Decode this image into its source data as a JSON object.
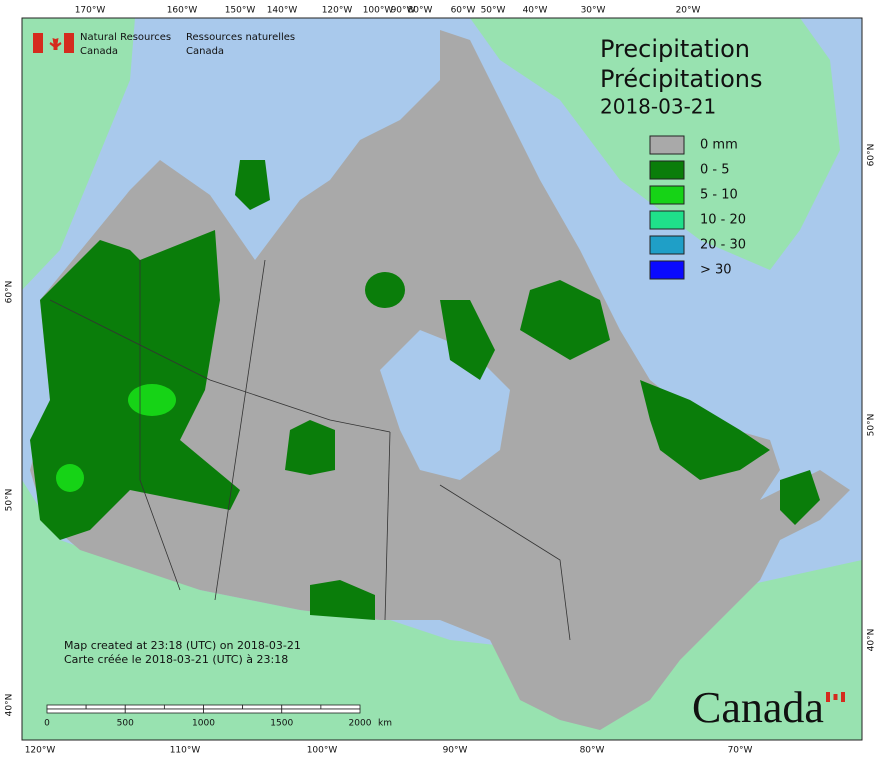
{
  "header": {
    "department_en": [
      "Natural Resources",
      "Canada"
    ],
    "department_fr": [
      "Ressources naturelles",
      "Canada"
    ]
  },
  "title": {
    "en": "Precipitation",
    "fr": "Précipitations",
    "date": "2018-03-21"
  },
  "legend": [
    {
      "label": "0 mm",
      "color": "#a9a9a9"
    },
    {
      "label": "0 - 5",
      "color": "#0a7d0a"
    },
    {
      "label": "5 - 10",
      "color": "#16d316"
    },
    {
      "label": "10 - 20",
      "color": "#1fe08a"
    },
    {
      "label": "20 - 30",
      "color": "#1f9fc7"
    },
    {
      "label": "> 30",
      "color": "#0a0aff"
    }
  ],
  "graticule": {
    "top": [
      "170°W",
      "160°W",
      "150°W",
      "140°W",
      "120°W",
      "100°W",
      "90°W",
      "80°W",
      "60°W",
      "50°W",
      "40°W",
      "30°W",
      "20°W"
    ],
    "bottom": [
      "120°W",
      "110°W",
      "100°W",
      "90°W",
      "80°W",
      "70°W"
    ],
    "left": [
      "60°N",
      "50°N",
      "40°N"
    ],
    "right": [
      "60°N",
      "50°N",
      "40°N"
    ]
  },
  "notes": [
    "Map created at 23:18 (UTC) on 2018-03-21",
    "Carte créée le 2018-03-21 (UTC) à 23:18"
  ],
  "scale_bar": {
    "ticks": [
      0,
      500,
      1000,
      1500,
      2000
    ],
    "unit": "km"
  },
  "wordmark": "Canada"
}
